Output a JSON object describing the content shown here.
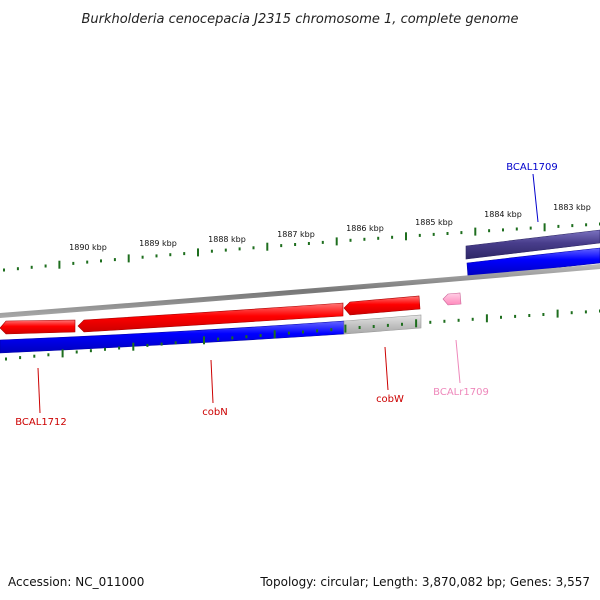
{
  "title": "Burkholderia cenocepacia J2315 chromosome 1, complete genome",
  "footer": {
    "accession": "Accession: NC_011000",
    "summary": "Topology: circular; Length: 3,870,082 bp; Genes: 3,557"
  },
  "scale": {
    "tick_labels": [
      "1890 kbp",
      "1889 kbp",
      "1888 kbp",
      "1887 kbp",
      "1886 kbp",
      "1885 kbp",
      "1884 kbp",
      "1883 kbp"
    ]
  },
  "features": [
    {
      "label": "BCAL1709",
      "color": "#0000cc",
      "track": "outer",
      "strand": "forward"
    },
    {
      "label": "BCAL1712",
      "color": "#cc0000",
      "track": "inner",
      "strand": "reverse"
    },
    {
      "label": "cobN",
      "color": "#cc0000",
      "track": "inner",
      "strand": "reverse"
    },
    {
      "label": "cobW",
      "color": "#cc0000",
      "track": "inner",
      "strand": "reverse"
    },
    {
      "label": "BCALr1709",
      "color": "#ee88bb",
      "track": "inner",
      "strand": "reverse"
    }
  ],
  "colors": {
    "ticks": "#1e6e1e",
    "backbone": "#888888",
    "cds_reverse": "#ff0000",
    "gene_forward": "#0000ff",
    "gene_partial": "#c0c0c0",
    "cds_forward": "#483d8b",
    "rna": "#ff99cc"
  }
}
